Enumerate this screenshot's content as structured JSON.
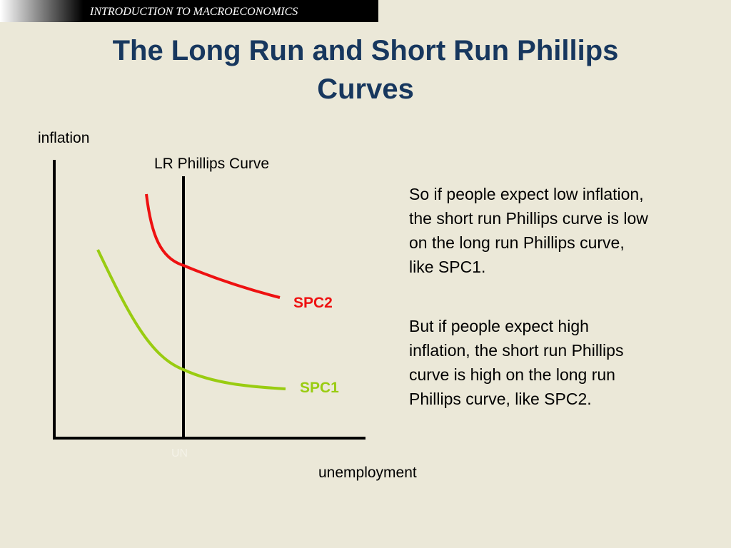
{
  "header": {
    "course": "INTRODUCTION TO MACROECONOMICS"
  },
  "title": {
    "lines": [
      "The Long Run and Short Run Phillips",
      "Curves"
    ]
  },
  "diagram": {
    "y_axis_label": "inflation",
    "x_axis_label": "unemployment",
    "lr_curve_label": "LR Phillips Curve",
    "natural_rate_label": "UN",
    "curves": [
      {
        "label": "SPC2"
      },
      {
        "label": "SPC1"
      }
    ]
  },
  "paragraphs": [
    {
      "lines": [
        "So if people expect low inflation,",
        "the short run Phillips curve is low",
        "on the long run Phillips curve,",
        "like SPC1."
      ]
    },
    {
      "lines": [
        "But if people expect high",
        "inflation, the short run Phillips",
        "curve is high on the long run",
        "Phillips curve, like SPC2."
      ]
    }
  ]
}
